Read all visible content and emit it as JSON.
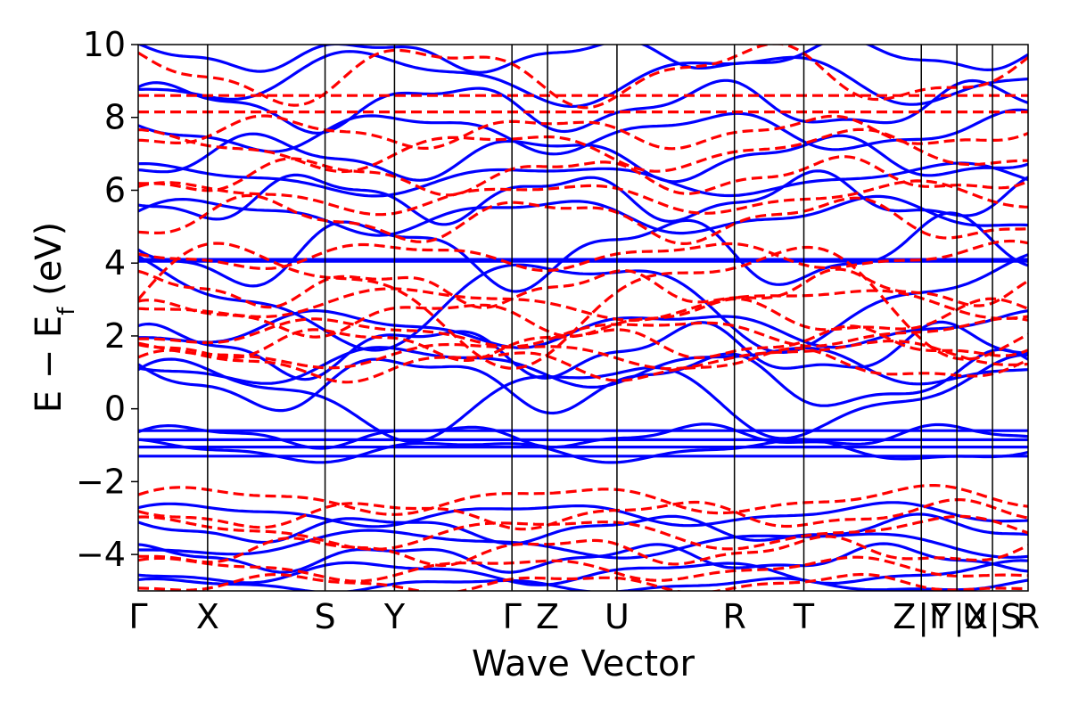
{
  "chart_data": {
    "type": "line",
    "title": "",
    "xlabel": "Wave Vector",
    "ylabel": "E − E_f (eV)",
    "ylabel_parts": {
      "main": "E − E",
      "sub": "f",
      "unit": " (eV)"
    },
    "ylim": [
      -5,
      10
    ],
    "yticks": [
      -4,
      -2,
      0,
      2,
      4,
      6,
      8,
      10
    ],
    "ytick_labels": [
      "−4",
      "−2",
      "0",
      "2",
      "4",
      "6",
      "8",
      "10"
    ],
    "x_range": [
      0,
      1
    ],
    "kpoints": [
      {
        "label": "Γ",
        "x": 0.0
      },
      {
        "label": "X",
        "x": 0.078
      },
      {
        "label": "S",
        "x": 0.21
      },
      {
        "label": "Y",
        "x": 0.288
      },
      {
        "label": "Γ",
        "x": 0.42
      },
      {
        "label": "Z",
        "x": 0.46
      },
      {
        "label": "U",
        "x": 0.538
      },
      {
        "label": "R",
        "x": 0.67
      },
      {
        "label": "T",
        "x": 0.748
      },
      {
        "label": "Z",
        "x": 0.88
      },
      {
        "label": "|Γ",
        "x": 0.88
      },
      {
        "label": "Y",
        "x": 0.92
      },
      {
        "label": "|X",
        "x": 0.92
      },
      {
        "label": "U",
        "x": 0.96
      },
      {
        "label": "|S",
        "x": 0.96
      },
      {
        "label": "R",
        "x": 1.0
      }
    ],
    "series": [
      {
        "style": "solid",
        "color": "#0000ff",
        "bands": [
          {
            "fn": "flat",
            "y": 4.05
          },
          {
            "fn": "flat",
            "y": 4.1
          },
          {
            "fn": "flat",
            "y": -0.6
          },
          {
            "fn": "flat",
            "y": -0.85
          },
          {
            "fn": "flat",
            "y": -1.05
          },
          {
            "fn": "flat",
            "y": -1.3
          },
          {
            "fn": "wave",
            "base": -0.75,
            "amp": 0.25,
            "freq": 3.5,
            "phase": 0.3
          },
          {
            "fn": "wave",
            "base": -1.15,
            "amp": 0.25,
            "freq": 2.8,
            "phase": 1.4
          },
          {
            "fn": "wave",
            "base": 0.3,
            "amp": 0.9,
            "freq": 2.2,
            "phase": 0.6
          },
          {
            "fn": "wave",
            "base": 0.75,
            "amp": 0.65,
            "freq": 3.0,
            "phase": 2.1
          },
          {
            "fn": "wave",
            "base": 1.2,
            "amp": 0.45,
            "freq": 2.5,
            "phase": 3.0
          },
          {
            "fn": "wave",
            "base": 1.6,
            "amp": 0.6,
            "freq": 3.4,
            "phase": 0.9
          },
          {
            "fn": "wave",
            "base": 2.2,
            "amp": 0.4,
            "freq": 2.6,
            "phase": 4.2
          },
          {
            "fn": "wave",
            "base": 3.0,
            "amp": 1.1,
            "freq": 2.0,
            "phase": 1.7
          },
          {
            "fn": "wave",
            "base": 4.3,
            "amp": 0.8,
            "freq": 3.1,
            "phase": 2.7
          },
          {
            "fn": "wave",
            "base": 5.3,
            "amp": 0.4,
            "freq": 2.7,
            "phase": 0.2
          },
          {
            "fn": "wave",
            "base": 5.8,
            "amp": 0.55,
            "freq": 3.6,
            "phase": 3.3
          },
          {
            "fn": "wave",
            "base": 6.3,
            "amp": 0.35,
            "freq": 2.3,
            "phase": 1.1
          },
          {
            "fn": "wave",
            "base": 6.9,
            "amp": 0.5,
            "freq": 3.2,
            "phase": 5.0
          },
          {
            "fn": "wave",
            "base": 7.6,
            "amp": 0.45,
            "freq": 2.9,
            "phase": 2.4
          },
          {
            "fn": "wave",
            "base": 8.3,
            "amp": 0.55,
            "freq": 3.3,
            "phase": 0.7
          },
          {
            "fn": "wave",
            "base": 9.1,
            "amp": 0.6,
            "freq": 2.4,
            "phase": 3.8
          },
          {
            "fn": "wave",
            "base": 9.7,
            "amp": 0.35,
            "freq": 3.7,
            "phase": 1.9
          },
          {
            "fn": "wave",
            "base": -2.9,
            "amp": 0.25,
            "freq": 2.6,
            "phase": 0.5
          },
          {
            "fn": "wave",
            "base": -3.3,
            "amp": 0.3,
            "freq": 3.3,
            "phase": 2.2
          },
          {
            "fn": "wave",
            "base": -3.7,
            "amp": 0.3,
            "freq": 2.1,
            "phase": 4.0
          },
          {
            "fn": "wave",
            "base": -4.1,
            "amp": 0.3,
            "freq": 3.6,
            "phase": 1.3
          },
          {
            "fn": "wave",
            "base": -4.5,
            "amp": 0.25,
            "freq": 2.8,
            "phase": 3.1
          },
          {
            "fn": "wave",
            "base": -4.85,
            "amp": 0.15,
            "freq": 3.0,
            "phase": 0.8
          }
        ]
      },
      {
        "style": "dashed",
        "color": "#ff0000",
        "bands": [
          {
            "fn": "flat",
            "y": 8.6
          },
          {
            "fn": "flat",
            "y": 8.15
          },
          {
            "fn": "wave",
            "base": 1.2,
            "amp": 0.35,
            "freq": 3.0,
            "phase": 0.4
          },
          {
            "fn": "wave",
            "base": 1.5,
            "amp": 0.3,
            "freq": 2.4,
            "phase": 1.8
          },
          {
            "fn": "wave",
            "base": 1.8,
            "amp": 0.35,
            "freq": 3.5,
            "phase": 2.9
          },
          {
            "fn": "wave",
            "base": 2.1,
            "amp": 0.3,
            "freq": 2.7,
            "phase": 4.1
          },
          {
            "fn": "wave",
            "base": 2.5,
            "amp": 0.4,
            "freq": 3.2,
            "phase": 0.9
          },
          {
            "fn": "wave",
            "base": 2.9,
            "amp": 0.35,
            "freq": 2.2,
            "phase": 3.4
          },
          {
            "fn": "wave",
            "base": 3.3,
            "amp": 0.4,
            "freq": 3.8,
            "phase": 1.5
          },
          {
            "fn": "wave",
            "base": 3.0,
            "amp": 1.4,
            "freq": 1.8,
            "phase": 0.0
          },
          {
            "fn": "wave",
            "base": 4.2,
            "amp": 0.3,
            "freq": 2.9,
            "phase": 2.6
          },
          {
            "fn": "wave",
            "base": 5.2,
            "amp": 0.5,
            "freq": 3.1,
            "phase": 5.2
          },
          {
            "fn": "wave",
            "base": 5.8,
            "amp": 0.35,
            "freq": 2.5,
            "phase": 0.6
          },
          {
            "fn": "wave",
            "base": 6.4,
            "amp": 0.4,
            "freq": 3.4,
            "phase": 3.7
          },
          {
            "fn": "wave",
            "base": 7.1,
            "amp": 0.45,
            "freq": 2.6,
            "phase": 1.2
          },
          {
            "fn": "wave",
            "base": 7.6,
            "amp": 0.35,
            "freq": 3.3,
            "phase": 4.6
          },
          {
            "fn": "wave",
            "base": 9.2,
            "amp": 0.7,
            "freq": 2.8,
            "phase": 2.0
          },
          {
            "fn": "wave",
            "base": -2.5,
            "amp": 0.3,
            "freq": 2.5,
            "phase": 0.3
          },
          {
            "fn": "wave",
            "base": -2.9,
            "amp": 0.3,
            "freq": 3.1,
            "phase": 2.5
          },
          {
            "fn": "wave",
            "base": -3.4,
            "amp": 0.35,
            "freq": 2.3,
            "phase": 1.1
          },
          {
            "fn": "wave",
            "base": -3.9,
            "amp": 0.3,
            "freq": 3.5,
            "phase": 3.6
          },
          {
            "fn": "wave",
            "base": -4.4,
            "amp": 0.25,
            "freq": 2.7,
            "phase": 0.7
          },
          {
            "fn": "wave",
            "base": -4.8,
            "amp": 0.2,
            "freq": 3.2,
            "phase": 4.4
          }
        ]
      }
    ],
    "grid": false,
    "legend": "none"
  }
}
